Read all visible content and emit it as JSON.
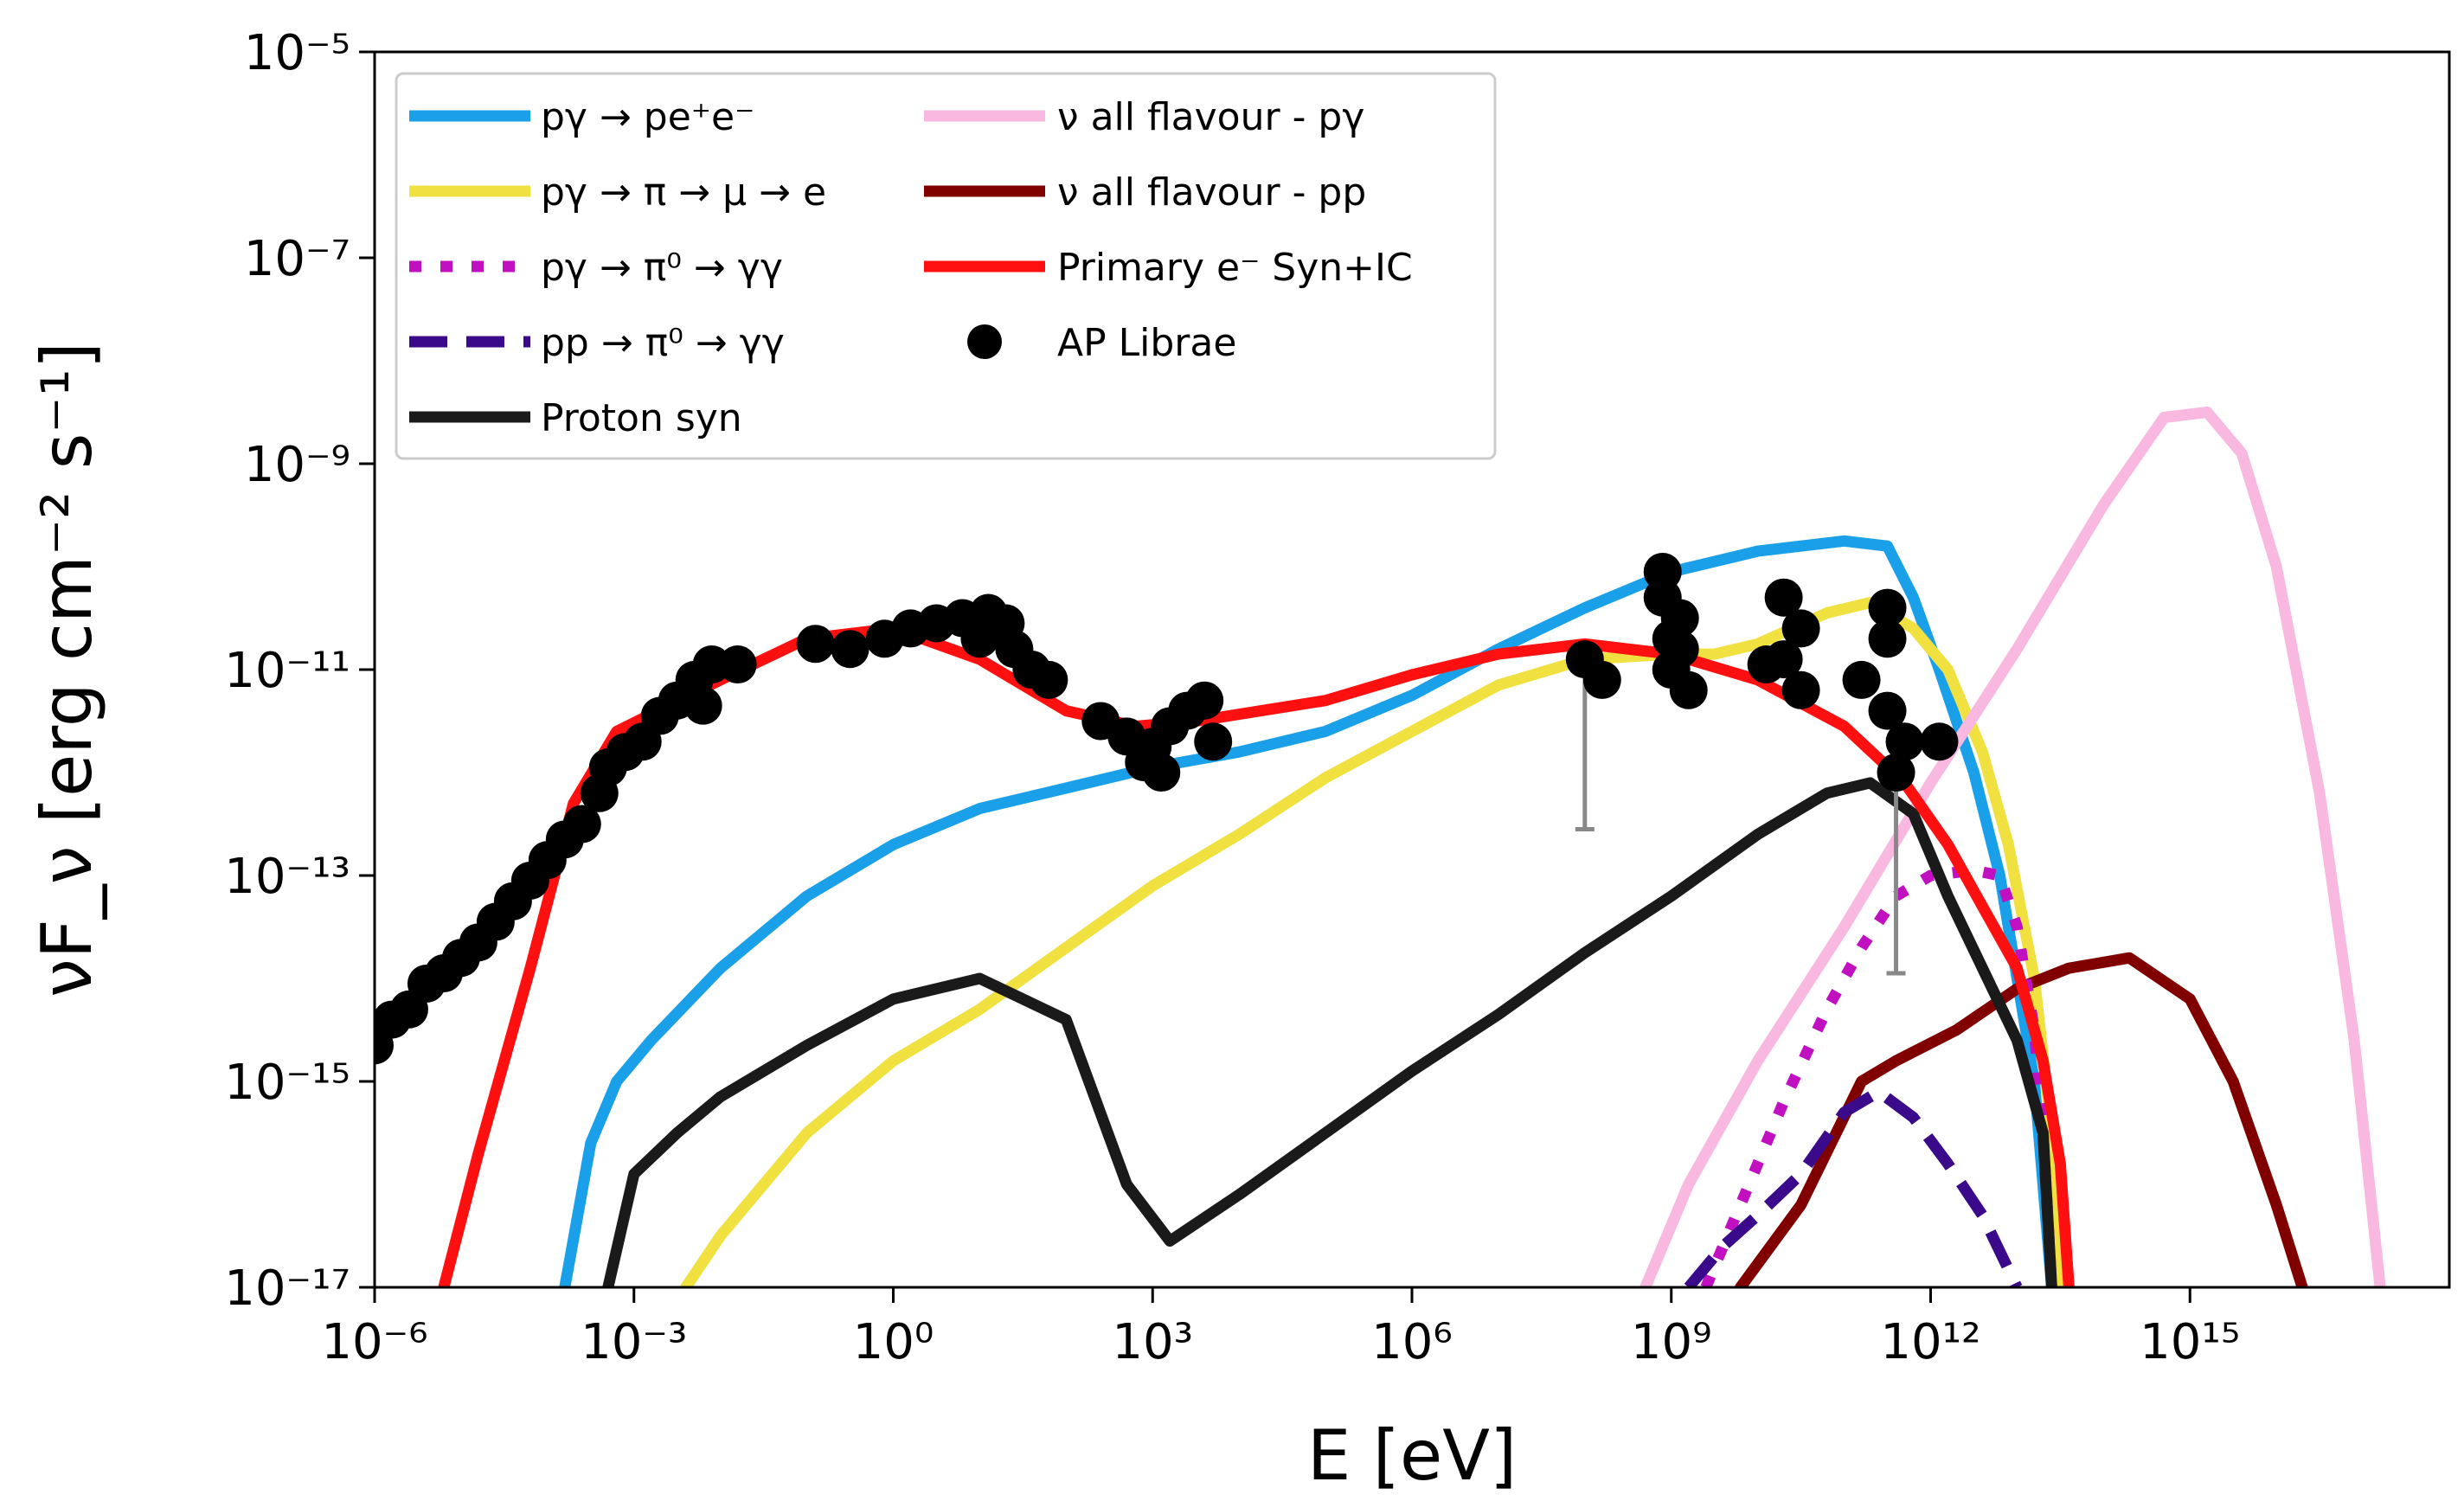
{
  "chart_data": {
    "type": "line",
    "title": "",
    "xlabel": "E [eV]",
    "ylabel": "νF_ν [erg cm⁻² s⁻¹]",
    "xscale": "log",
    "yscale": "log",
    "xlim_log10": [
      -6,
      18
    ],
    "ylim_log10": [
      -17,
      -5
    ],
    "x_ticks": [
      {
        "exp": -6,
        "label": "10⁻⁶"
      },
      {
        "exp": -3,
        "label": "10⁻³"
      },
      {
        "exp": 0,
        "label": "10⁰"
      },
      {
        "exp": 3,
        "label": "10³"
      },
      {
        "exp": 6,
        "label": "10⁶"
      },
      {
        "exp": 9,
        "label": "10⁹"
      },
      {
        "exp": 12,
        "label": "10¹²"
      },
      {
        "exp": 15,
        "label": "10¹⁵"
      }
    ],
    "y_ticks": [
      {
        "exp": -17,
        "label": "10⁻¹⁷"
      },
      {
        "exp": -15,
        "label": "10⁻¹⁵"
      },
      {
        "exp": -13,
        "label": "10⁻¹³"
      },
      {
        "exp": -11,
        "label": "10⁻¹¹"
      },
      {
        "exp": -9,
        "label": "10⁻⁹"
      },
      {
        "exp": -7,
        "label": "10⁻⁷"
      },
      {
        "exp": -5,
        "label": "10⁻⁵"
      }
    ],
    "legend_position": "top-left",
    "series": [
      {
        "id": "pgamma-pair",
        "name": "pγ → pe⁺e⁻",
        "color": "#1aa0e8",
        "dash": "solid",
        "points": [
          [
            -3.8,
            -17
          ],
          [
            -3.5,
            -15.6
          ],
          [
            -3.2,
            -15.0
          ],
          [
            -2.8,
            -14.6
          ],
          [
            -2,
            -13.9
          ],
          [
            -1,
            -13.2
          ],
          [
            0,
            -12.7
          ],
          [
            1,
            -12.35
          ],
          [
            2,
            -12.15
          ],
          [
            3,
            -11.95
          ],
          [
            4,
            -11.8
          ],
          [
            5,
            -11.6
          ],
          [
            6,
            -11.25
          ],
          [
            7,
            -10.8
          ],
          [
            8,
            -10.4
          ],
          [
            9,
            -10.05
          ],
          [
            10,
            -9.85
          ],
          [
            11,
            -9.75
          ],
          [
            11.5,
            -9.8
          ],
          [
            11.8,
            -10.3
          ],
          [
            12.1,
            -11.0
          ],
          [
            12.5,
            -12.0
          ],
          [
            12.8,
            -13.0
          ],
          [
            13.0,
            -14.0
          ],
          [
            13.2,
            -15.0
          ],
          [
            13.4,
            -17
          ]
        ]
      },
      {
        "id": "pgamma-pion-e",
        "name": "pγ → π → μ → e",
        "color": "#f0e040",
        "dash": "solid",
        "points": [
          [
            -2.4,
            -17
          ],
          [
            -2,
            -16.5
          ],
          [
            -1,
            -15.5
          ],
          [
            0,
            -14.8
          ],
          [
            1,
            -14.3
          ],
          [
            2,
            -13.7
          ],
          [
            3,
            -13.1
          ],
          [
            4,
            -12.6
          ],
          [
            5,
            -12.05
          ],
          [
            6,
            -11.6
          ],
          [
            7,
            -11.15
          ],
          [
            8,
            -10.9
          ],
          [
            9,
            -10.85
          ],
          [
            9.5,
            -10.85
          ],
          [
            10,
            -10.75
          ],
          [
            10.8,
            -10.45
          ],
          [
            11.3,
            -10.35
          ],
          [
            11.8,
            -10.6
          ],
          [
            12.2,
            -11.0
          ],
          [
            12.6,
            -11.8
          ],
          [
            12.9,
            -12.7
          ],
          [
            13.2,
            -14.0
          ],
          [
            13.4,
            -15.5
          ],
          [
            13.5,
            -17
          ]
        ]
      },
      {
        "id": "pgamma-pi0",
        "name": "pγ → π⁰ → γγ",
        "color": "#c010c0",
        "dash": "dotted",
        "points": [
          [
            9.4,
            -17
          ],
          [
            9.8,
            -16.2
          ],
          [
            10.3,
            -15.2
          ],
          [
            10.8,
            -14.3
          ],
          [
            11.2,
            -13.7
          ],
          [
            11.6,
            -13.2
          ],
          [
            12,
            -13.0
          ],
          [
            12.5,
            -12.95
          ],
          [
            12.8,
            -13.0
          ],
          [
            13.0,
            -13.5
          ],
          [
            13.2,
            -14.5
          ],
          [
            13.3,
            -15.5
          ],
          [
            13.4,
            -17
          ]
        ]
      },
      {
        "id": "pp-pi0",
        "name": "pp → π⁰ → γγ",
        "color": "#3a0a8a",
        "dash": "dashed",
        "points": [
          [
            9.2,
            -17
          ],
          [
            9.6,
            -16.6
          ],
          [
            10.0,
            -16.3
          ],
          [
            10.5,
            -15.9
          ],
          [
            11.0,
            -15.3
          ],
          [
            11.4,
            -15.1
          ],
          [
            11.8,
            -15.35
          ],
          [
            12.2,
            -15.8
          ],
          [
            12.6,
            -16.3
          ],
          [
            13.0,
            -17
          ]
        ]
      },
      {
        "id": "proton-syn",
        "name": "Proton syn",
        "color": "#1a1a1a",
        "dash": "solid",
        "points": [
          [
            -3.3,
            -17
          ],
          [
            -3,
            -15.9
          ],
          [
            -2.5,
            -15.5
          ],
          [
            -2,
            -15.15
          ],
          [
            -1,
            -14.65
          ],
          [
            0,
            -14.2
          ],
          [
            1,
            -14.0
          ],
          [
            2,
            -14.4
          ],
          [
            2.7,
            -16.0
          ],
          [
            3.2,
            -16.55
          ],
          [
            4,
            -16.1
          ],
          [
            5,
            -15.5
          ],
          [
            6,
            -14.9
          ],
          [
            7,
            -14.35
          ],
          [
            8,
            -13.75
          ],
          [
            9,
            -13.2
          ],
          [
            10,
            -12.6
          ],
          [
            10.8,
            -12.2
          ],
          [
            11.3,
            -12.1
          ],
          [
            11.8,
            -12.4
          ],
          [
            12.2,
            -13.2
          ],
          [
            12.6,
            -13.9
          ],
          [
            13.0,
            -14.6
          ],
          [
            13.3,
            -15.5
          ],
          [
            13.4,
            -17
          ]
        ]
      },
      {
        "id": "nu-pgamma",
        "name": "ν all flavour - pγ",
        "color": "#f8b8e0",
        "dash": "solid",
        "points": [
          [
            8.7,
            -17
          ],
          [
            9.2,
            -16.0
          ],
          [
            10,
            -14.8
          ],
          [
            11,
            -13.5
          ],
          [
            12,
            -12.1
          ],
          [
            13,
            -10.8
          ],
          [
            14,
            -9.4
          ],
          [
            14.7,
            -8.55
          ],
          [
            15.2,
            -8.5
          ],
          [
            15.6,
            -8.9
          ],
          [
            16.0,
            -10.0
          ],
          [
            16.5,
            -12.2
          ],
          [
            16.9,
            -14.6
          ],
          [
            17.2,
            -17
          ]
        ]
      },
      {
        "id": "nu-pp",
        "name": "ν all flavour - pp",
        "color": "#800000",
        "dash": "solid",
        "points": [
          [
            9.8,
            -17
          ],
          [
            10.5,
            -16.2
          ],
          [
            11.2,
            -15.0
          ],
          [
            11.6,
            -14.8
          ],
          [
            12.3,
            -14.5
          ],
          [
            13.0,
            -14.1
          ],
          [
            13.6,
            -13.9
          ],
          [
            14.3,
            -13.8
          ],
          [
            15.0,
            -14.2
          ],
          [
            15.5,
            -15.0
          ],
          [
            16.0,
            -16.2
          ],
          [
            16.3,
            -17
          ]
        ]
      },
      {
        "id": "primary-e",
        "name": "Primary e⁻ Syn+IC",
        "color": "#ff1010",
        "dash": "solid",
        "points": [
          [
            -5.2,
            -17
          ],
          [
            -4.8,
            -15.7
          ],
          [
            -4.2,
            -13.9
          ],
          [
            -3.7,
            -12.3
          ],
          [
            -3.2,
            -11.6
          ],
          [
            -2,
            -11.1
          ],
          [
            -1,
            -10.7
          ],
          [
            0,
            -10.6
          ],
          [
            1,
            -10.9
          ],
          [
            2,
            -11.4
          ],
          [
            2.8,
            -11.55
          ],
          [
            3.5,
            -11.5
          ],
          [
            5,
            -11.3
          ],
          [
            6,
            -11.05
          ],
          [
            7,
            -10.85
          ],
          [
            8,
            -10.75
          ],
          [
            9,
            -10.85
          ],
          [
            10,
            -11.1
          ],
          [
            11,
            -11.55
          ],
          [
            11.7,
            -12.1
          ],
          [
            12.2,
            -12.7
          ],
          [
            12.6,
            -13.3
          ],
          [
            13.0,
            -13.9
          ],
          [
            13.3,
            -14.8
          ],
          [
            13.5,
            -15.8
          ],
          [
            13.6,
            -17
          ]
        ]
      }
    ],
    "data_series": {
      "name": "AP Librae",
      "color": "#000000",
      "points": [
        [
          -6,
          -14.65
        ],
        [
          -5.8,
          -14.4
        ],
        [
          -5.6,
          -14.3
        ],
        [
          -5.4,
          -14.05
        ],
        [
          -5.2,
          -13.95
        ],
        [
          -5,
          -13.8
        ],
        [
          -4.8,
          -13.65
        ],
        [
          -4.6,
          -13.45
        ],
        [
          -4.4,
          -13.25
        ],
        [
          -4.2,
          -13.05
        ],
        [
          -4.0,
          -12.85
        ],
        [
          -3.8,
          -12.65
        ],
        [
          -3.6,
          -12.5
        ],
        [
          -3.4,
          -12.2
        ],
        [
          -3.3,
          -11.95
        ],
        [
          -3.1,
          -11.8
        ],
        [
          -2.9,
          -11.7
        ],
        [
          -2.7,
          -11.45
        ],
        [
          -2.5,
          -11.3
        ],
        [
          -2.3,
          -11.1
        ],
        [
          -2.1,
          -10.95
        ],
        [
          -2.2,
          -11.35
        ],
        [
          -1.8,
          -10.95
        ],
        [
          -0.9,
          -10.75
        ],
        [
          -0.5,
          -10.8
        ],
        [
          -0.1,
          -10.7
        ],
        [
          0.2,
          -10.6
        ],
        [
          0.5,
          -10.55
        ],
        [
          0.8,
          -10.5
        ],
        [
          1.1,
          -10.45
        ],
        [
          1.3,
          -10.55
        ],
        [
          1.0,
          -10.7
        ],
        [
          1.4,
          -10.8
        ],
        [
          1.6,
          -11.0
        ],
        [
          1.8,
          -11.1
        ],
        [
          2.4,
          -11.5
        ],
        [
          2.7,
          -11.65
        ],
        [
          3.0,
          -11.75
        ],
        [
          3.2,
          -11.55
        ],
        [
          3.4,
          -11.4
        ],
        [
          3.6,
          -11.3
        ],
        [
          3.7,
          -11.7
        ],
        [
          2.9,
          -11.9
        ],
        [
          3.1,
          -12.0
        ],
        [
          8.0,
          -10.9
        ],
        [
          8.2,
          -11.1
        ],
        [
          8.9,
          -10.05
        ],
        [
          8.9,
          -10.3
        ],
        [
          9.1,
          -10.5
        ],
        [
          9.0,
          -10.7
        ],
        [
          9.2,
          -11.2
        ],
        [
          9.0,
          -11.0
        ],
        [
          9.1,
          -10.8
        ],
        [
          10.3,
          -10.3
        ],
        [
          10.5,
          -10.6
        ],
        [
          10.3,
          -10.9
        ],
        [
          10.5,
          -11.2
        ],
        [
          10.1,
          -10.95
        ],
        [
          11.2,
          -11.1
        ],
        [
          11.5,
          -10.4
        ],
        [
          11.5,
          -10.7
        ],
        [
          11.5,
          -11.4
        ],
        [
          11.7,
          -11.7
        ],
        [
          12.1,
          -11.7
        ],
        [
          11.6,
          -12.0
        ]
      ],
      "upper_limits": [
        [
          8.0,
          -10.95,
          -12.55
        ],
        [
          11.6,
          -11.8,
          -13.95
        ]
      ]
    },
    "legend": {
      "col1": [
        "pγ → pe⁺e⁻",
        "pγ → π → μ → e",
        "pγ → π⁰ → γγ",
        "pp → π⁰ → γγ",
        "Proton syn"
      ],
      "col2": [
        "ν all flavour - pγ",
        "ν all flavour - pp",
        "Primary e⁻ Syn+IC",
        "AP Librae"
      ]
    }
  }
}
